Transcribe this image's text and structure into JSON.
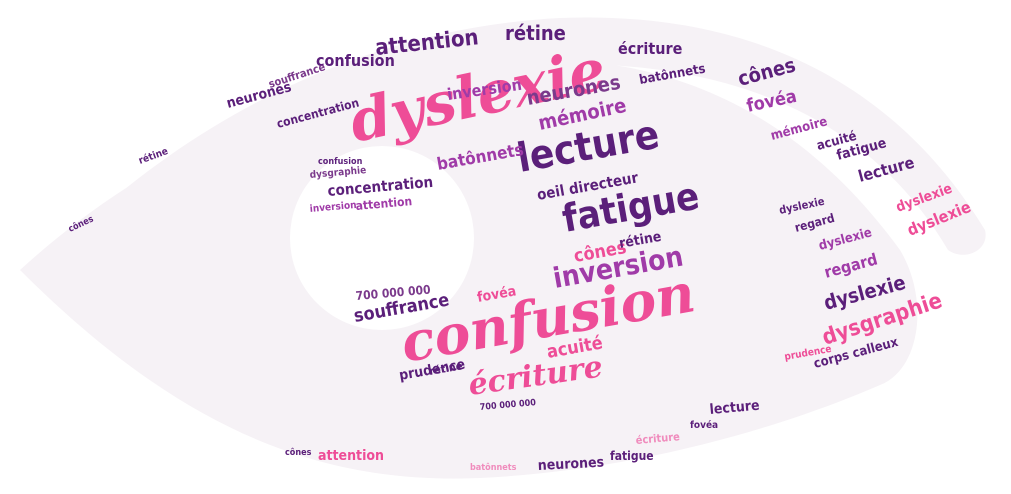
{
  "image": {
    "kind": "word-cloud",
    "shape": "eye",
    "palette": {
      "dark_purple": "#5b1f7a",
      "pink": "#ee4d97",
      "magenta": "#a03ba8",
      "light_pink": "#d981c4",
      "background_shape": "#f6f2f6"
    }
  },
  "words": {
    "dyslexie": "dyslexie",
    "confusion": "confusion",
    "lecture": "lecture",
    "fatigue": "fatigue",
    "ecriture": "écriture",
    "inversion": "inversion",
    "memoire": "mémoire",
    "neurones": "neurones",
    "attention": "attention",
    "retine": "rétine",
    "batonnets": "batônnets",
    "cones": "cônes",
    "fovea": "fovéa",
    "concentration": "concentration",
    "oeil_directeur": "oeil directeur",
    "souffrance": "souffrance",
    "dysgraphie": "dysgraphie",
    "regard": "regard",
    "acuite": "acuité",
    "prudence": "prudence",
    "corps_calleux": "corps calleux",
    "count": "700 000 000"
  }
}
